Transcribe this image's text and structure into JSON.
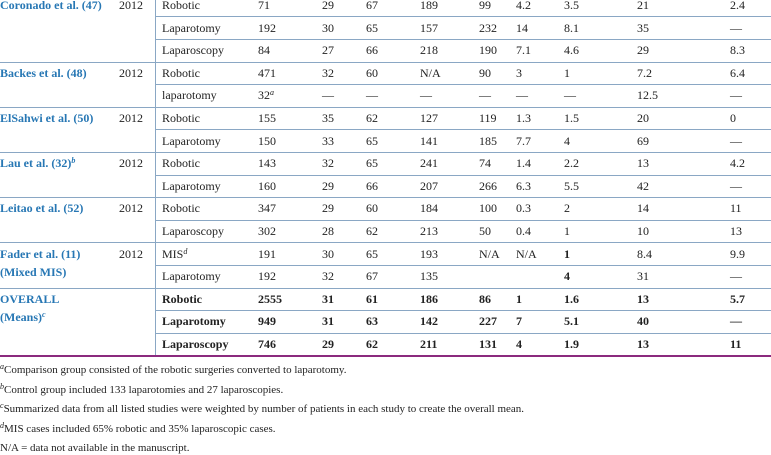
{
  "table": {
    "groups": [
      {
        "study": [
          "Coronado et al. (47)"
        ],
        "year": "2012",
        "rows": [
          {
            "approach": "Robotic",
            "values": [
              "71",
              "29",
              "67",
              "189",
              "99",
              "4.2",
              "3.5",
              "21",
              "2.4"
            ]
          },
          {
            "approach": "Laparotomy",
            "values": [
              "192",
              "30",
              "65",
              "157",
              "232",
              "14",
              "8.1",
              "35",
              "—"
            ]
          },
          {
            "approach": "Laparoscopy",
            "values": [
              "84",
              "27",
              "66",
              "218",
              "190",
              "7.1",
              "4.6",
              "29",
              "8.3"
            ]
          }
        ]
      },
      {
        "study": [
          "Backes et al. (48)"
        ],
        "year": "2012",
        "rows": [
          {
            "approach": "Robotic",
            "values": [
              "471",
              "32",
              "60",
              "N/A",
              "90",
              "3",
              "1",
              "7.2",
              "6.4"
            ]
          },
          {
            "approach": "laparotomy",
            "values": [
              {
                "text": "32",
                "sup": "a"
              },
              "—",
              "—",
              "—",
              "—",
              "—",
              "—",
              "12.5",
              "—"
            ]
          }
        ]
      },
      {
        "study": [
          "ElSahwi et al. (50)"
        ],
        "year": "2012",
        "rows": [
          {
            "approach": "Robotic",
            "values": [
              "155",
              "35",
              "62",
              "127",
              "119",
              "1.3",
              "1.5",
              "20",
              "0"
            ]
          },
          {
            "approach": "Laparotomy",
            "values": [
              "150",
              "33",
              "65",
              "141",
              "185",
              "7.7",
              "4",
              "69",
              "—"
            ]
          }
        ]
      },
      {
        "study": [
          {
            "text": "Lau et al. (32)",
            "sup": "b"
          }
        ],
        "year": "2012",
        "rows": [
          {
            "approach": "Robotic",
            "values": [
              "143",
              "32",
              "65",
              "241",
              "74",
              "1.4",
              "2.2",
              "13",
              "4.2"
            ]
          },
          {
            "approach": "Laparotomy",
            "values": [
              "160",
              "29",
              "66",
              "207",
              "266",
              "6.3",
              "5.5",
              "42",
              "—"
            ]
          }
        ]
      },
      {
        "study": [
          "Leitao et al. (52)"
        ],
        "year": "2012",
        "rows": [
          {
            "approach": "Robotic",
            "values": [
              "347",
              "29",
              "60",
              "184",
              "100",
              "0.3",
              "2",
              "14",
              "11"
            ]
          },
          {
            "approach": "Laparoscopy",
            "values": [
              "302",
              "28",
              "62",
              "213",
              "50",
              "0.4",
              "1",
              "10",
              "13"
            ]
          }
        ]
      },
      {
        "study": [
          "Fader et al. (11)",
          "(Mixed MIS)"
        ],
        "year": "2012",
        "bold_columns": [
          6
        ],
        "rows": [
          {
            "approach": {
              "text": "MIS",
              "sup": "d"
            },
            "values": [
              "191",
              "30",
              "65",
              "193",
              "N/A",
              "N/A",
              "1",
              "8.4",
              "9.9"
            ]
          },
          {
            "approach": "Laparotomy",
            "values": [
              "192",
              "32",
              "67",
              "135",
              null,
              null,
              "4",
              "31",
              "—"
            ]
          }
        ]
      },
      {
        "study": [
          "OVERALL",
          {
            "text": "(Means)",
            "sup": "c"
          }
        ],
        "year": null,
        "bold": true,
        "rows": [
          {
            "approach": "Robotic",
            "values": [
              "2555",
              "31",
              "61",
              "186",
              "86",
              "1",
              "1.6",
              "13",
              "5.7"
            ]
          },
          {
            "approach": "Laparotomy",
            "values": [
              "949",
              "31",
              "63",
              "142",
              "227",
              "7",
              "5.1",
              "40",
              "—"
            ]
          },
          {
            "approach": "Laparoscopy",
            "values": [
              "746",
              "29",
              "62",
              "211",
              "131",
              "4",
              "1.9",
              "13",
              "11"
            ]
          }
        ]
      }
    ]
  },
  "footnotes": [
    {
      "mark": "a",
      "text": "Comparison group consisted of the robotic surgeries converted to laparotomy."
    },
    {
      "mark": "b",
      "text": "Control group included 133 laparotomies and 27 laparoscopies."
    },
    {
      "mark": "c",
      "text": "Summarized data from all listed studies were weighted by number of patients in each study to create the overall mean."
    },
    {
      "mark": "d",
      "text": "MIS cases included 65% robotic and 35% laparoscopic cases."
    },
    {
      "text": "N/A = data not available in the manuscript."
    }
  ]
}
